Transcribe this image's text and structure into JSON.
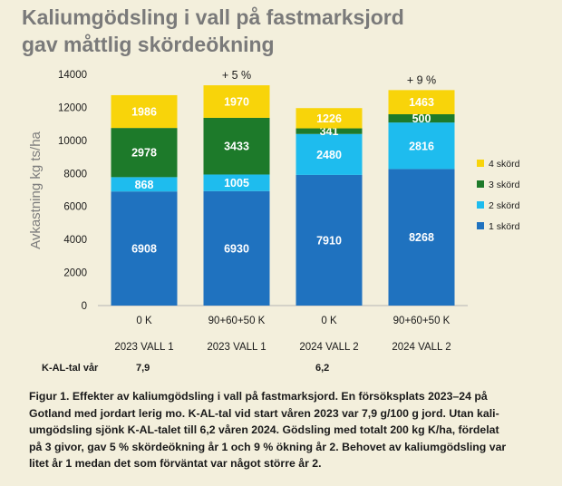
{
  "title": {
    "line1": "Kaliumgödsling i vall på fastmarksjord",
    "line2": "gav måttlig skördeökning"
  },
  "chart_data": {
    "type": "bar",
    "stacked": true,
    "ylabel": "Avkastning kg ts/ha",
    "ylim": [
      0,
      14000
    ],
    "yticks": [
      "0",
      "2000",
      "4000",
      "6000",
      "8000",
      "10000",
      "12000",
      "14000"
    ],
    "ytick_values": [
      0,
      2000,
      4000,
      6000,
      8000,
      10000,
      12000,
      14000
    ],
    "categories": [
      "0 K",
      "90+60+50 K",
      "0 K",
      "90+60+50 K"
    ],
    "groups": [
      "2023 VALL 1",
      "2023 VALL 1",
      "2024 VALL 2",
      "2024 VALL 2"
    ],
    "series": [
      {
        "name": "1 skörd",
        "color": "#1f72bf",
        "values": [
          6908,
          6930,
          7910,
          8268
        ],
        "labels": [
          "6908",
          "6930",
          "7910",
          "8268"
        ],
        "label_color": "#ffffff"
      },
      {
        "name": "2 skörd",
        "color": "#1ebcee",
        "values": [
          868,
          1005,
          2480,
          2816
        ],
        "labels": [
          "868",
          "1005",
          "2480",
          "2816"
        ],
        "label_color": "#ffffff"
      },
      {
        "name": "3 skörd",
        "color": "#1d7a2a",
        "values": [
          2978,
          3433,
          341,
          500
        ],
        "labels": [
          "2978",
          "3433",
          "341",
          "500"
        ],
        "label_color": "#ffffff"
      },
      {
        "name": "4 skörd",
        "color": "#f8d40a",
        "values": [
          1986,
          1970,
          1226,
          1463
        ],
        "labels": [
          "1986",
          "1970",
          "1226",
          "1463"
        ],
        "label_color": "#ffffff"
      }
    ],
    "annotations": [
      {
        "category_index": 1,
        "text": "+ 5 %"
      },
      {
        "category_index": 3,
        "text": "+ 9 %"
      }
    ],
    "legend_position": "right"
  },
  "kal": {
    "label": "K-AL-tal vår",
    "value_2023": "7,9",
    "value_2024": "6,2"
  },
  "caption": {
    "line1": "Figur 1. Effekter av kaliumgödsling i vall på fastmarksjord. En försöksplats 2023–24 på",
    "line2": "Gotland med jordart lerig mo. K-AL-tal vid start våren 2023 var 7,9 g/100 g jord. Utan kali-",
    "line3": "umgödsling sjönk K-AL-talet till 6,2 våren 2024. Gödsling med totalt 200 kg K/ha, fördelat",
    "line4": "på 3 givor, gav 5 % skördeökning år 1 och 9 % ökning år 2. Behovet av kaliumgödsling var",
    "line5": "litet år 1 medan det som förväntat var något större år 2."
  }
}
